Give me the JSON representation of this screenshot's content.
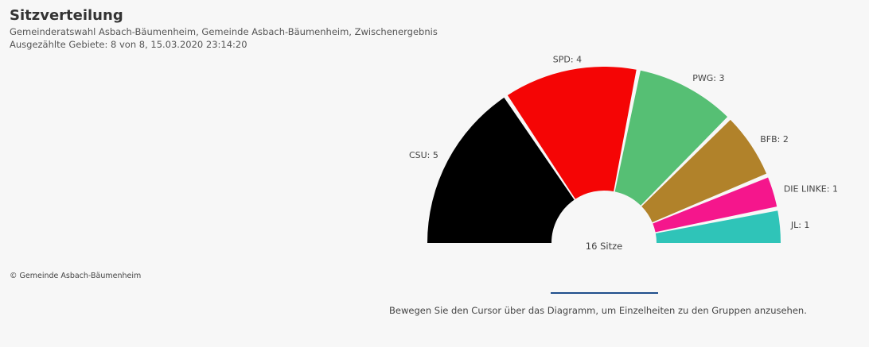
{
  "header": {
    "title": "Sitzverteilung",
    "subtitle": "Gemeinderatswahl Asbach-Bäumenheim, Gemeinde Asbach-Bäumenheim, Zwischenergebnis",
    "status": "Ausgezählte Gebiete: 8 von 8, 15.03.2020 23:14:20"
  },
  "copyright": "© Gemeinde Asbach-Bäumenheim",
  "hint": "Bewegen Sie den Cursor über das Diagramm, um Einzelheiten zu den Gruppen anzusehen.",
  "accent_color": "#1f4e8c",
  "chart_data": {
    "type": "pie",
    "variant": "semicircle-donut",
    "center_label": "16 Sitze",
    "total": 16,
    "categories": [
      "CSU",
      "SPD",
      "PWG",
      "BFB",
      "DIE LINKE",
      "JL"
    ],
    "values": [
      5,
      4,
      3,
      2,
      1,
      1
    ],
    "labels": [
      "CSU: 5",
      "SPD: 4",
      "PWG: 3",
      "BFB: 2",
      "DIE LINKE: 1",
      "JL: 1"
    ],
    "colors": [
      "#000000",
      "#f50505",
      "#56bf74",
      "#b1822a",
      "#f5168c",
      "#2fc4b8"
    ]
  }
}
